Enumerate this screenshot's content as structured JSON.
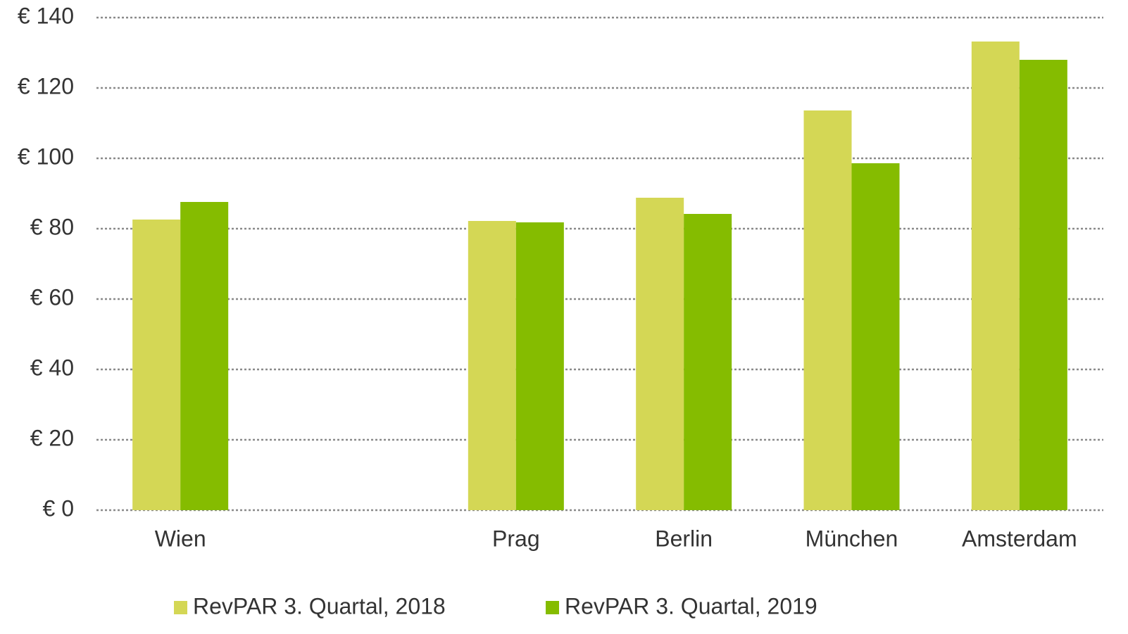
{
  "chart_data": {
    "type": "bar",
    "categories": [
      "Wien",
      null,
      "Prag",
      "Berlin",
      "München",
      "Amsterdam"
    ],
    "series": [
      {
        "name": "RevPAR 3. Quartal, 2018",
        "color": "#d4d755",
        "values": [
          82.6,
          null,
          82.2,
          88.8,
          113.6,
          133.2
        ]
      },
      {
        "name": "RevPAR 3. Quartal, 2019",
        "color": "#85bc00",
        "values": [
          87.6,
          null,
          81.8,
          84.2,
          98.6,
          128
        ]
      }
    ],
    "ylim": [
      0,
      140
    ],
    "yticks": [
      {
        "value": 0,
        "label": "€ 0"
      },
      {
        "value": 20,
        "label": "€ 20"
      },
      {
        "value": 40,
        "label": "€ 40"
      },
      {
        "value": 60,
        "label": "€ 60"
      },
      {
        "value": 80,
        "label": "€ 80"
      },
      {
        "value": 100,
        "label": "€ 100"
      },
      {
        "value": 120,
        "label": "€ 120"
      },
      {
        "value": 140,
        "label": "€ 140"
      }
    ],
    "grid": true,
    "legend": "bottom"
  }
}
